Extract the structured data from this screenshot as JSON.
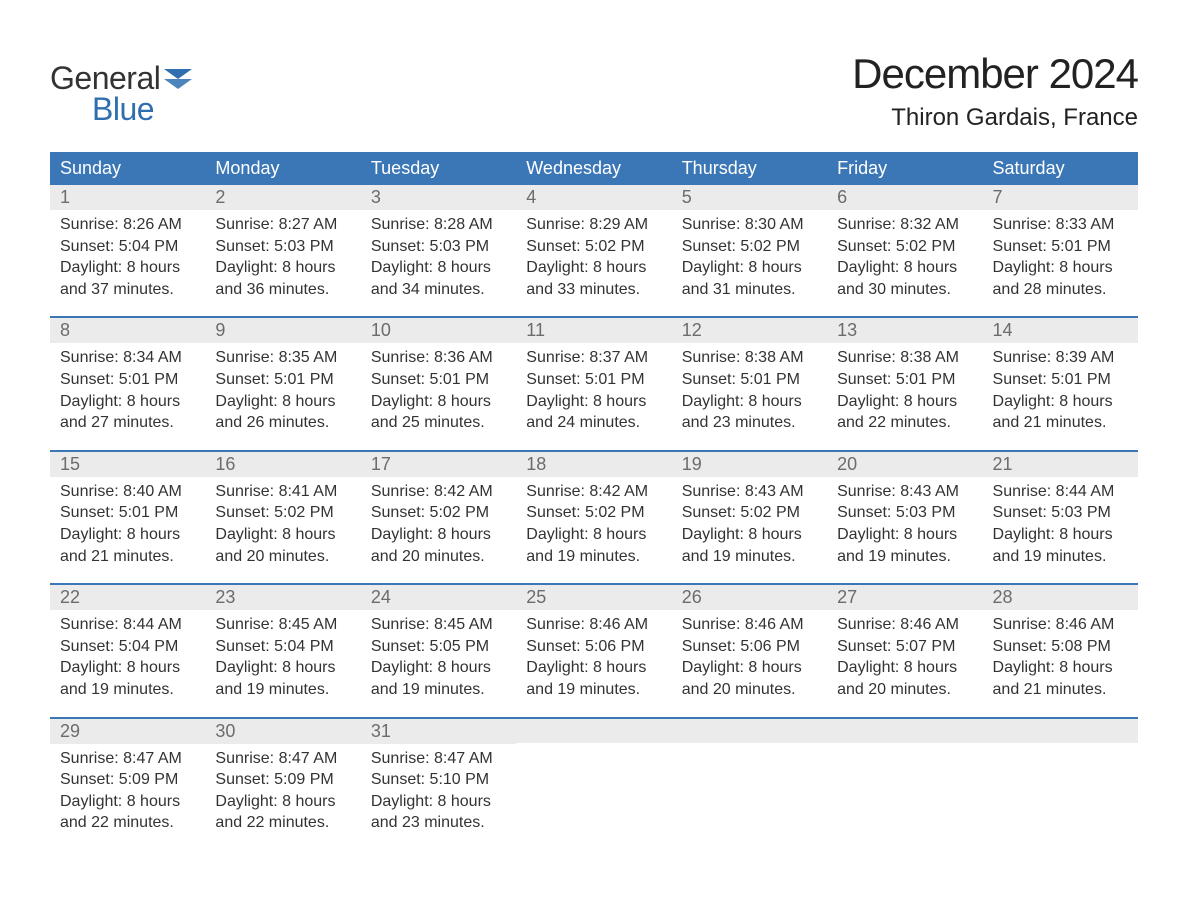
{
  "brand": {
    "top": "General",
    "bottom": "Blue",
    "flag_color": "#2f6fb0"
  },
  "colors": {
    "header_bg": "#3b77b6",
    "header_text": "#ffffff",
    "daynum_bg": "#ebebeb",
    "daynum_text": "#6c6c6c",
    "week_border": "#3b77b6",
    "body_text": "#333333",
    "page_bg": "#ffffff"
  },
  "title": "December 2024",
  "location": "Thiron Gardais, France",
  "day_headers": [
    "Sunday",
    "Monday",
    "Tuesday",
    "Wednesday",
    "Thursday",
    "Friday",
    "Saturday"
  ],
  "weeks": [
    [
      {
        "n": "1",
        "sunrise": "Sunrise: 8:26 AM",
        "sunset": "Sunset: 5:04 PM",
        "d1": "Daylight: 8 hours",
        "d2": "and 37 minutes."
      },
      {
        "n": "2",
        "sunrise": "Sunrise: 8:27 AM",
        "sunset": "Sunset: 5:03 PM",
        "d1": "Daylight: 8 hours",
        "d2": "and 36 minutes."
      },
      {
        "n": "3",
        "sunrise": "Sunrise: 8:28 AM",
        "sunset": "Sunset: 5:03 PM",
        "d1": "Daylight: 8 hours",
        "d2": "and 34 minutes."
      },
      {
        "n": "4",
        "sunrise": "Sunrise: 8:29 AM",
        "sunset": "Sunset: 5:02 PM",
        "d1": "Daylight: 8 hours",
        "d2": "and 33 minutes."
      },
      {
        "n": "5",
        "sunrise": "Sunrise: 8:30 AM",
        "sunset": "Sunset: 5:02 PM",
        "d1": "Daylight: 8 hours",
        "d2": "and 31 minutes."
      },
      {
        "n": "6",
        "sunrise": "Sunrise: 8:32 AM",
        "sunset": "Sunset: 5:02 PM",
        "d1": "Daylight: 8 hours",
        "d2": "and 30 minutes."
      },
      {
        "n": "7",
        "sunrise": "Sunrise: 8:33 AM",
        "sunset": "Sunset: 5:01 PM",
        "d1": "Daylight: 8 hours",
        "d2": "and 28 minutes."
      }
    ],
    [
      {
        "n": "8",
        "sunrise": "Sunrise: 8:34 AM",
        "sunset": "Sunset: 5:01 PM",
        "d1": "Daylight: 8 hours",
        "d2": "and 27 minutes."
      },
      {
        "n": "9",
        "sunrise": "Sunrise: 8:35 AM",
        "sunset": "Sunset: 5:01 PM",
        "d1": "Daylight: 8 hours",
        "d2": "and 26 minutes."
      },
      {
        "n": "10",
        "sunrise": "Sunrise: 8:36 AM",
        "sunset": "Sunset: 5:01 PM",
        "d1": "Daylight: 8 hours",
        "d2": "and 25 minutes."
      },
      {
        "n": "11",
        "sunrise": "Sunrise: 8:37 AM",
        "sunset": "Sunset: 5:01 PM",
        "d1": "Daylight: 8 hours",
        "d2": "and 24 minutes."
      },
      {
        "n": "12",
        "sunrise": "Sunrise: 8:38 AM",
        "sunset": "Sunset: 5:01 PM",
        "d1": "Daylight: 8 hours",
        "d2": "and 23 minutes."
      },
      {
        "n": "13",
        "sunrise": "Sunrise: 8:38 AM",
        "sunset": "Sunset: 5:01 PM",
        "d1": "Daylight: 8 hours",
        "d2": "and 22 minutes."
      },
      {
        "n": "14",
        "sunrise": "Sunrise: 8:39 AM",
        "sunset": "Sunset: 5:01 PM",
        "d1": "Daylight: 8 hours",
        "d2": "and 21 minutes."
      }
    ],
    [
      {
        "n": "15",
        "sunrise": "Sunrise: 8:40 AM",
        "sunset": "Sunset: 5:01 PM",
        "d1": "Daylight: 8 hours",
        "d2": "and 21 minutes."
      },
      {
        "n": "16",
        "sunrise": "Sunrise: 8:41 AM",
        "sunset": "Sunset: 5:02 PM",
        "d1": "Daylight: 8 hours",
        "d2": "and 20 minutes."
      },
      {
        "n": "17",
        "sunrise": "Sunrise: 8:42 AM",
        "sunset": "Sunset: 5:02 PM",
        "d1": "Daylight: 8 hours",
        "d2": "and 20 minutes."
      },
      {
        "n": "18",
        "sunrise": "Sunrise: 8:42 AM",
        "sunset": "Sunset: 5:02 PM",
        "d1": "Daylight: 8 hours",
        "d2": "and 19 minutes."
      },
      {
        "n": "19",
        "sunrise": "Sunrise: 8:43 AM",
        "sunset": "Sunset: 5:02 PM",
        "d1": "Daylight: 8 hours",
        "d2": "and 19 minutes."
      },
      {
        "n": "20",
        "sunrise": "Sunrise: 8:43 AM",
        "sunset": "Sunset: 5:03 PM",
        "d1": "Daylight: 8 hours",
        "d2": "and 19 minutes."
      },
      {
        "n": "21",
        "sunrise": "Sunrise: 8:44 AM",
        "sunset": "Sunset: 5:03 PM",
        "d1": "Daylight: 8 hours",
        "d2": "and 19 minutes."
      }
    ],
    [
      {
        "n": "22",
        "sunrise": "Sunrise: 8:44 AM",
        "sunset": "Sunset: 5:04 PM",
        "d1": "Daylight: 8 hours",
        "d2": "and 19 minutes."
      },
      {
        "n": "23",
        "sunrise": "Sunrise: 8:45 AM",
        "sunset": "Sunset: 5:04 PM",
        "d1": "Daylight: 8 hours",
        "d2": "and 19 minutes."
      },
      {
        "n": "24",
        "sunrise": "Sunrise: 8:45 AM",
        "sunset": "Sunset: 5:05 PM",
        "d1": "Daylight: 8 hours",
        "d2": "and 19 minutes."
      },
      {
        "n": "25",
        "sunrise": "Sunrise: 8:46 AM",
        "sunset": "Sunset: 5:06 PM",
        "d1": "Daylight: 8 hours",
        "d2": "and 19 minutes."
      },
      {
        "n": "26",
        "sunrise": "Sunrise: 8:46 AM",
        "sunset": "Sunset: 5:06 PM",
        "d1": "Daylight: 8 hours",
        "d2": "and 20 minutes."
      },
      {
        "n": "27",
        "sunrise": "Sunrise: 8:46 AM",
        "sunset": "Sunset: 5:07 PM",
        "d1": "Daylight: 8 hours",
        "d2": "and 20 minutes."
      },
      {
        "n": "28",
        "sunrise": "Sunrise: 8:46 AM",
        "sunset": "Sunset: 5:08 PM",
        "d1": "Daylight: 8 hours",
        "d2": "and 21 minutes."
      }
    ],
    [
      {
        "n": "29",
        "sunrise": "Sunrise: 8:47 AM",
        "sunset": "Sunset: 5:09 PM",
        "d1": "Daylight: 8 hours",
        "d2": "and 22 minutes."
      },
      {
        "n": "30",
        "sunrise": "Sunrise: 8:47 AM",
        "sunset": "Sunset: 5:09 PM",
        "d1": "Daylight: 8 hours",
        "d2": "and 22 minutes."
      },
      {
        "n": "31",
        "sunrise": "Sunrise: 8:47 AM",
        "sunset": "Sunset: 5:10 PM",
        "d1": "Daylight: 8 hours",
        "d2": "and 23 minutes."
      },
      {
        "empty": true
      },
      {
        "empty": true
      },
      {
        "empty": true
      },
      {
        "empty": true
      }
    ]
  ]
}
